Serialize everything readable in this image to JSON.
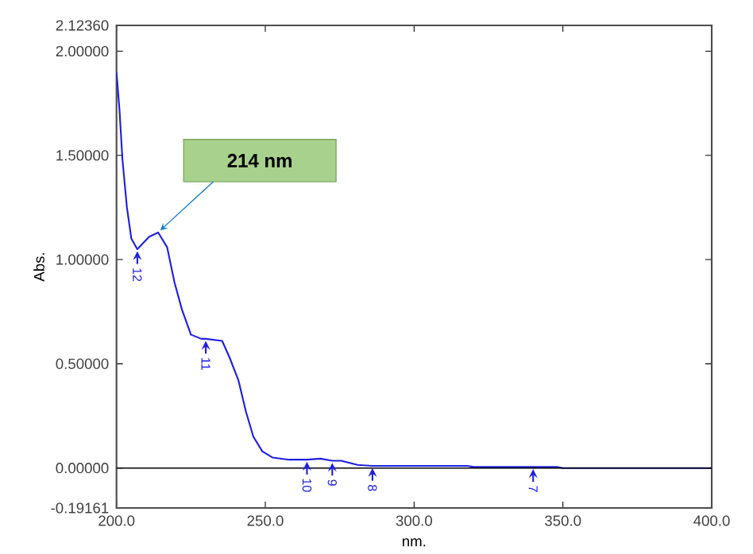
{
  "chart_data": {
    "type": "line",
    "xlabel": "nm.",
    "ylabel": "Abs.",
    "x": [
      200,
      201,
      202,
      203.5,
      205,
      207,
      209,
      211,
      214,
      217,
      219.5,
      222,
      225,
      228.5,
      230,
      235.5,
      238,
      241,
      243.5,
      246,
      249,
      252.5,
      258,
      264,
      268.5,
      272.5,
      275.5,
      281,
      286,
      300,
      318,
      320,
      348,
      350,
      400
    ],
    "series": [
      {
        "color": "#1f1fe0",
        "values": [
          1.9,
          1.72,
          1.48,
          1.25,
          1.1,
          1.05,
          1.08,
          1.11,
          1.13,
          1.06,
          0.89,
          0.76,
          0.64,
          0.62,
          0.62,
          0.61,
          0.53,
          0.42,
          0.27,
          0.15,
          0.08,
          0.05,
          0.04,
          0.04,
          0.045,
          0.035,
          0.035,
          0.015,
          0.01,
          0.01,
          0.01,
          0.005,
          0.005,
          0.0,
          0.0
        ]
      }
    ],
    "xlim": [
      200,
      400
    ],
    "ylim": [
      -0.19161,
      2.1236
    ],
    "xticks": [
      {
        "value": 200,
        "label": "200.0"
      },
      {
        "value": 250,
        "label": "250.0"
      },
      {
        "value": 300,
        "label": "300.0"
      },
      {
        "value": 350,
        "label": "350.0"
      },
      {
        "value": 400,
        "label": "400.0"
      }
    ],
    "yticks": [
      {
        "value": -0.19161,
        "label": "-0.19161"
      },
      {
        "value": 0,
        "label": "0.00000"
      },
      {
        "value": 0.5,
        "label": "0.50000"
      },
      {
        "value": 1.0,
        "label": "1.00000"
      },
      {
        "value": 1.5,
        "label": "1.50000"
      },
      {
        "value": 2.0,
        "label": "2.00000"
      },
      {
        "value": 2.1236,
        "label": "2.12360"
      }
    ],
    "ref_lines": [
      {
        "axis": "y",
        "value": 0,
        "color": "#000000"
      }
    ],
    "annotations": [
      {
        "text": "214 nm",
        "x": 214,
        "y": 1.13
      },
      {
        "text": "12",
        "x": 207,
        "y": 1.05
      },
      {
        "text": "11",
        "x": 230,
        "y": 0.62
      },
      {
        "text": "10",
        "x": 264,
        "y": 0.04
      },
      {
        "text": "9",
        "x": 272.5,
        "y": 0.035
      },
      {
        "text": "8",
        "x": 286,
        "y": 0.01
      },
      {
        "text": "7",
        "x": 340,
        "y": 0.005
      }
    ]
  }
}
